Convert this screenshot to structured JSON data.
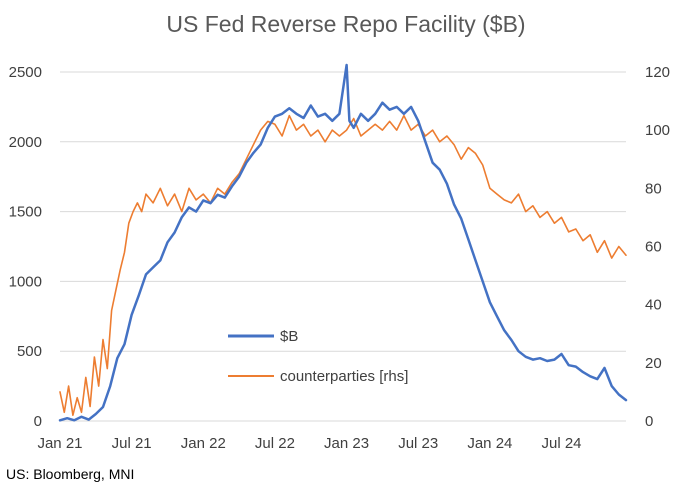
{
  "chart_data": {
    "type": "line",
    "title": "US Fed Reverse Repo Facility ($B)",
    "source": "US: Bloomberg, MNI",
    "x_labels": [
      "Jan 21",
      "Jul 21",
      "Jan 22",
      "Jul 22",
      "Jan 23",
      "Jul 23",
      "Jan 24",
      "Jul 24"
    ],
    "xlim": [
      2021.0,
      2024.95
    ],
    "y_left": {
      "ticks": [
        0,
        500,
        1000,
        1500,
        2000,
        2500
      ],
      "ylim": [
        0,
        2600
      ]
    },
    "y_right": {
      "ticks": [
        0,
        20,
        40,
        60,
        80,
        100,
        120
      ],
      "ylim": [
        0,
        124.8
      ]
    },
    "gridlines": true,
    "legend_position": "center",
    "series": [
      {
        "name": "$B",
        "axis": "left",
        "color": "#4472C4",
        "points": [
          [
            2021.0,
            5
          ],
          [
            2021.05,
            20
          ],
          [
            2021.1,
            5
          ],
          [
            2021.15,
            30
          ],
          [
            2021.2,
            10
          ],
          [
            2021.25,
            50
          ],
          [
            2021.3,
            100
          ],
          [
            2021.35,
            250
          ],
          [
            2021.4,
            450
          ],
          [
            2021.45,
            550
          ],
          [
            2021.5,
            760
          ],
          [
            2021.55,
            900
          ],
          [
            2021.6,
            1050
          ],
          [
            2021.65,
            1100
          ],
          [
            2021.7,
            1150
          ],
          [
            2021.75,
            1280
          ],
          [
            2021.8,
            1350
          ],
          [
            2021.85,
            1460
          ],
          [
            2021.9,
            1530
          ],
          [
            2021.95,
            1500
          ],
          [
            2022.0,
            1580
          ],
          [
            2022.05,
            1560
          ],
          [
            2022.1,
            1620
          ],
          [
            2022.15,
            1600
          ],
          [
            2022.2,
            1680
          ],
          [
            2022.25,
            1750
          ],
          [
            2022.3,
            1850
          ],
          [
            2022.35,
            1920
          ],
          [
            2022.4,
            1980
          ],
          [
            2022.45,
            2100
          ],
          [
            2022.5,
            2180
          ],
          [
            2022.55,
            2200
          ],
          [
            2022.6,
            2240
          ],
          [
            2022.65,
            2200
          ],
          [
            2022.7,
            2170
          ],
          [
            2022.75,
            2260
          ],
          [
            2022.8,
            2180
          ],
          [
            2022.85,
            2200
          ],
          [
            2022.9,
            2150
          ],
          [
            2022.95,
            2200
          ],
          [
            2023.0,
            2550
          ],
          [
            2023.02,
            2150
          ],
          [
            2023.05,
            2100
          ],
          [
            2023.1,
            2200
          ],
          [
            2023.15,
            2150
          ],
          [
            2023.2,
            2200
          ],
          [
            2023.25,
            2280
          ],
          [
            2023.3,
            2230
          ],
          [
            2023.35,
            2250
          ],
          [
            2023.4,
            2200
          ],
          [
            2023.45,
            2250
          ],
          [
            2023.5,
            2150
          ],
          [
            2023.55,
            2000
          ],
          [
            2023.6,
            1850
          ],
          [
            2023.65,
            1800
          ],
          [
            2023.7,
            1700
          ],
          [
            2023.75,
            1550
          ],
          [
            2023.8,
            1450
          ],
          [
            2023.85,
            1300
          ],
          [
            2023.9,
            1150
          ],
          [
            2023.95,
            1000
          ],
          [
            2024.0,
            850
          ],
          [
            2024.05,
            750
          ],
          [
            2024.1,
            650
          ],
          [
            2024.15,
            580
          ],
          [
            2024.2,
            500
          ],
          [
            2024.25,
            460
          ],
          [
            2024.3,
            440
          ],
          [
            2024.35,
            450
          ],
          [
            2024.4,
            430
          ],
          [
            2024.45,
            440
          ],
          [
            2024.5,
            480
          ],
          [
            2024.55,
            400
          ],
          [
            2024.6,
            390
          ],
          [
            2024.65,
            350
          ],
          [
            2024.7,
            320
          ],
          [
            2024.75,
            300
          ],
          [
            2024.8,
            380
          ],
          [
            2024.85,
            250
          ],
          [
            2024.9,
            190
          ],
          [
            2024.95,
            150
          ]
        ]
      },
      {
        "name": "counterparties [rhs]",
        "axis": "right",
        "color": "#ED7D31",
        "points": [
          [
            2021.0,
            10
          ],
          [
            2021.03,
            3
          ],
          [
            2021.06,
            12
          ],
          [
            2021.09,
            2
          ],
          [
            2021.12,
            8
          ],
          [
            2021.15,
            3
          ],
          [
            2021.18,
            15
          ],
          [
            2021.21,
            5
          ],
          [
            2021.24,
            22
          ],
          [
            2021.27,
            12
          ],
          [
            2021.3,
            28
          ],
          [
            2021.33,
            18
          ],
          [
            2021.36,
            38
          ],
          [
            2021.39,
            45
          ],
          [
            2021.42,
            52
          ],
          [
            2021.45,
            58
          ],
          [
            2021.48,
            68
          ],
          [
            2021.51,
            72
          ],
          [
            2021.54,
            75
          ],
          [
            2021.57,
            72
          ],
          [
            2021.6,
            78
          ],
          [
            2021.65,
            75
          ],
          [
            2021.7,
            80
          ],
          [
            2021.75,
            74
          ],
          [
            2021.8,
            78
          ],
          [
            2021.85,
            72
          ],
          [
            2021.9,
            80
          ],
          [
            2021.95,
            76
          ],
          [
            2022.0,
            78
          ],
          [
            2022.05,
            75
          ],
          [
            2022.1,
            80
          ],
          [
            2022.15,
            78
          ],
          [
            2022.2,
            82
          ],
          [
            2022.25,
            85
          ],
          [
            2022.3,
            90
          ],
          [
            2022.35,
            95
          ],
          [
            2022.4,
            100
          ],
          [
            2022.45,
            103
          ],
          [
            2022.5,
            102
          ],
          [
            2022.55,
            98
          ],
          [
            2022.6,
            105
          ],
          [
            2022.65,
            100
          ],
          [
            2022.7,
            102
          ],
          [
            2022.75,
            98
          ],
          [
            2022.8,
            100
          ],
          [
            2022.85,
            96
          ],
          [
            2022.9,
            100
          ],
          [
            2022.95,
            98
          ],
          [
            2023.0,
            100
          ],
          [
            2023.05,
            104
          ],
          [
            2023.1,
            98
          ],
          [
            2023.15,
            100
          ],
          [
            2023.2,
            102
          ],
          [
            2023.25,
            100
          ],
          [
            2023.3,
            103
          ],
          [
            2023.35,
            100
          ],
          [
            2023.4,
            105
          ],
          [
            2023.45,
            100
          ],
          [
            2023.5,
            102
          ],
          [
            2023.55,
            98
          ],
          [
            2023.6,
            100
          ],
          [
            2023.65,
            96
          ],
          [
            2023.7,
            98
          ],
          [
            2023.75,
            95
          ],
          [
            2023.8,
            90
          ],
          [
            2023.85,
            94
          ],
          [
            2023.9,
            92
          ],
          [
            2023.95,
            88
          ],
          [
            2024.0,
            80
          ],
          [
            2024.05,
            78
          ],
          [
            2024.1,
            76
          ],
          [
            2024.15,
            75
          ],
          [
            2024.2,
            78
          ],
          [
            2024.25,
            72
          ],
          [
            2024.3,
            74
          ],
          [
            2024.35,
            70
          ],
          [
            2024.4,
            72
          ],
          [
            2024.45,
            68
          ],
          [
            2024.5,
            70
          ],
          [
            2024.55,
            65
          ],
          [
            2024.6,
            66
          ],
          [
            2024.65,
            62
          ],
          [
            2024.7,
            64
          ],
          [
            2024.75,
            58
          ],
          [
            2024.8,
            62
          ],
          [
            2024.85,
            56
          ],
          [
            2024.9,
            60
          ],
          [
            2024.95,
            57
          ]
        ]
      }
    ]
  }
}
